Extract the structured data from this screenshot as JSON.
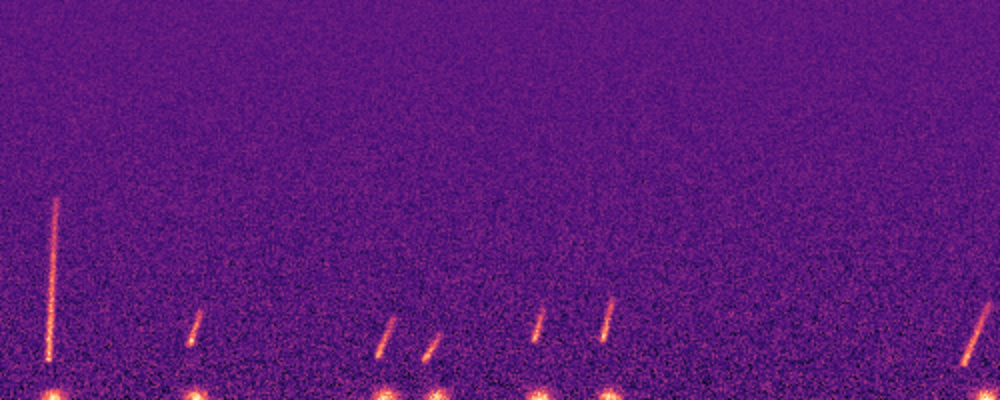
{
  "chart_data": {
    "type": "spectrogram",
    "tick_labels": false,
    "xlim": [
      0,
      100
    ],
    "ylim": [
      0,
      100
    ],
    "calls": [
      {
        "pulse_time": 5.3,
        "sweep_time": [
          4.8,
          5.5
        ],
        "sweep_freq": [
          10,
          50
        ]
      },
      {
        "pulse_time": 19.6,
        "sweep_time": [
          19.0,
          20.0
        ],
        "sweep_freq": [
          14,
          22
        ]
      },
      {
        "pulse_time": 38.5,
        "sweep_time": [
          37.8,
          39.3
        ],
        "sweep_freq": [
          11,
          20
        ]
      },
      {
        "pulse_time": 43.7,
        "sweep_time": [
          42.5,
          44.0
        ],
        "sweep_freq": [
          10,
          16
        ]
      },
      {
        "pulse_time": 54.0,
        "sweep_time": [
          53.5,
          54.3
        ],
        "sweep_freq": [
          15,
          22
        ]
      },
      {
        "pulse_time": 61.0,
        "sweep_time": [
          60.3,
          61.3
        ],
        "sweep_freq": [
          15,
          25
        ]
      },
      {
        "pulse_time": 98.7,
        "sweep_time": [
          96.5,
          99.0
        ],
        "sweep_freq": [
          9,
          24
        ]
      }
    ]
  }
}
